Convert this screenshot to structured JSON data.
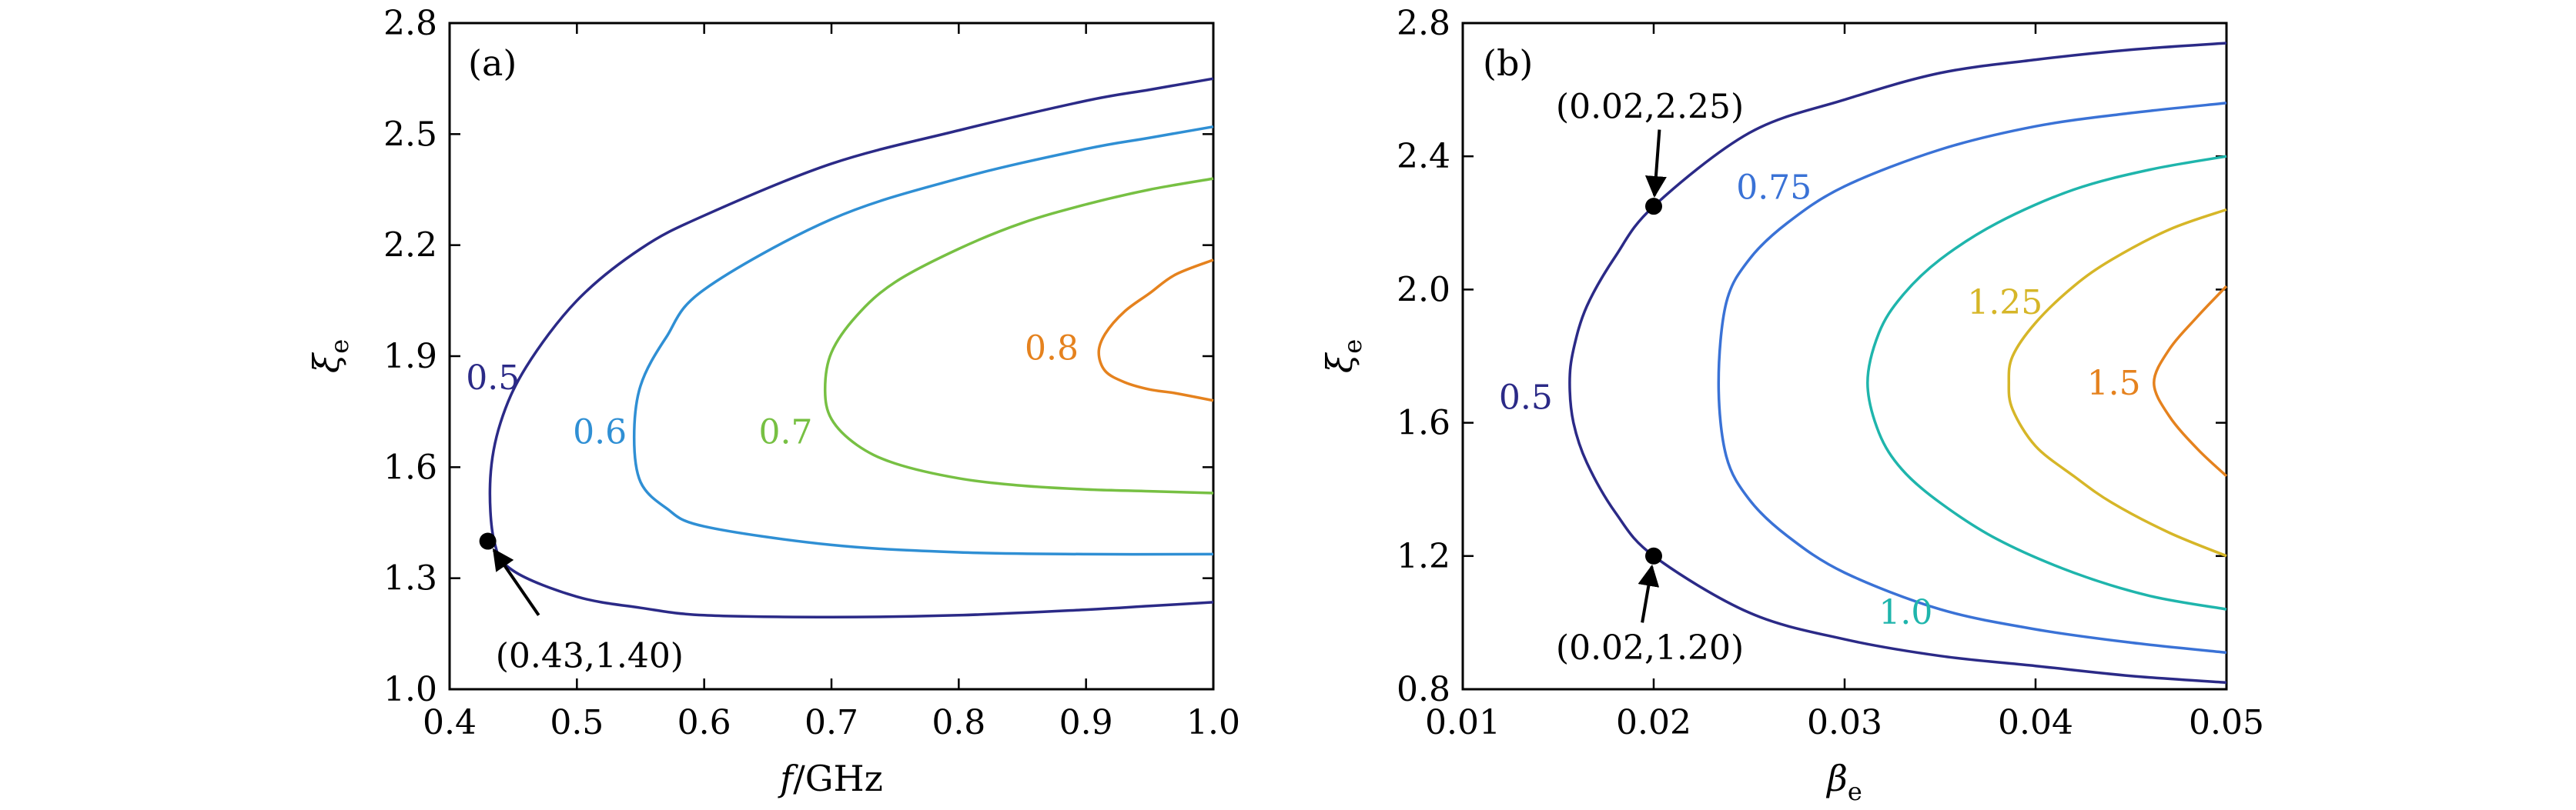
{
  "chart_data": [
    {
      "type": "line",
      "panel_label": "(a)",
      "xlabel_main": "f",
      "xlabel_unit": "/GHz",
      "ylabel_main": "ξ",
      "ylabel_sub": "e",
      "xlim": [
        0.4,
        1.0
      ],
      "ylim": [
        1.0,
        2.8
      ],
      "xticks": [
        "0.4",
        "0.5",
        "0.6",
        "0.7",
        "0.8",
        "0.9",
        "1.0"
      ],
      "yticks": [
        "1.0",
        "1.3",
        "1.6",
        "1.9",
        "2.2",
        "2.5",
        "2.8"
      ],
      "series": [
        {
          "name": "0.5",
          "color": "#2b2a87",
          "x": [
            1.0,
            0.95,
            0.9,
            0.8,
            0.7,
            0.6,
            0.55,
            0.5,
            0.46,
            0.44,
            0.432,
            0.435,
            0.45,
            0.5,
            0.55,
            0.6,
            0.7,
            0.8,
            0.9,
            0.95,
            1.0
          ],
          "y": [
            2.65,
            2.62,
            2.59,
            2.51,
            2.42,
            2.28,
            2.19,
            2.05,
            1.87,
            1.72,
            1.57,
            1.4,
            1.32,
            1.25,
            1.22,
            1.2,
            1.195,
            1.2,
            1.215,
            1.225,
            1.235
          ]
        },
        {
          "name": "0.6",
          "color": "#2f8fd4",
          "x": [
            1.0,
            0.95,
            0.9,
            0.8,
            0.7,
            0.6,
            0.57,
            0.55,
            0.545,
            0.55,
            0.57,
            0.6,
            0.7,
            0.8,
            0.9,
            1.0
          ],
          "y": [
            2.52,
            2.49,
            2.46,
            2.38,
            2.27,
            2.08,
            1.95,
            1.82,
            1.68,
            1.56,
            1.49,
            1.44,
            1.39,
            1.37,
            1.365,
            1.365
          ]
        },
        {
          "name": "0.7",
          "color": "#77c043",
          "x": [
            1.0,
            0.95,
            0.9,
            0.85,
            0.8,
            0.75,
            0.72,
            0.7,
            0.695,
            0.7,
            0.72,
            0.75,
            0.8,
            0.85,
            0.9,
            0.95,
            1.0
          ],
          "y": [
            2.38,
            2.35,
            2.31,
            2.26,
            2.19,
            2.1,
            2.01,
            1.91,
            1.81,
            1.73,
            1.66,
            1.61,
            1.57,
            1.55,
            1.54,
            1.535,
            1.53
          ]
        },
        {
          "name": "0.8",
          "color": "#e5821e",
          "x": [
            1.0,
            0.97,
            0.95,
            0.93,
            0.915,
            0.91,
            0.915,
            0.93,
            0.95,
            0.97,
            1.0
          ],
          "y": [
            2.16,
            2.12,
            2.07,
            2.02,
            1.96,
            1.91,
            1.86,
            1.83,
            1.81,
            1.8,
            1.78
          ]
        }
      ],
      "contour_labels": [
        {
          "text": "0.5",
          "x": 0.434,
          "y": 1.842,
          "color": "#2b2a87"
        },
        {
          "text": "0.6",
          "x": 0.518,
          "y": 1.695,
          "color": "#2f8fd4"
        },
        {
          "text": "0.7",
          "x": 0.664,
          "y": 1.695,
          "color": "#77c043"
        },
        {
          "text": "0.8",
          "x": 0.873,
          "y": 1.922,
          "color": "#e5821e"
        }
      ],
      "point": {
        "x": 0.43,
        "y": 1.4,
        "label": "(0.43,1.40)",
        "label_x": 0.51,
        "label_y": 1.09,
        "arrow_from_x": 0.47,
        "arrow_from_y": 1.2
      }
    },
    {
      "type": "line",
      "panel_label": "(b)",
      "xlabel_main": "β",
      "xlabel_sub": "e",
      "ylabel_main": "ξ",
      "ylabel_sub": "e",
      "xlim": [
        0.01,
        0.05
      ],
      "ylim": [
        0.8,
        2.8
      ],
      "xticks": [
        "0.01",
        "0.02",
        "0.03",
        "0.04",
        "0.05"
      ],
      "yticks": [
        "0.8",
        "1.2",
        "1.6",
        "2.0",
        "2.4",
        "2.8"
      ],
      "series": [
        {
          "name": "0.5",
          "color": "#2b2a87",
          "x": [
            0.05,
            0.045,
            0.04,
            0.035,
            0.03,
            0.025,
            0.02,
            0.018,
            0.0165,
            0.0158,
            0.0156,
            0.0158,
            0.0165,
            0.018,
            0.02,
            0.025,
            0.03,
            0.035,
            0.04,
            0.045,
            0.05
          ],
          "y": [
            2.74,
            2.72,
            2.69,
            2.65,
            2.57,
            2.47,
            2.25,
            2.1,
            1.95,
            1.82,
            1.72,
            1.6,
            1.48,
            1.33,
            1.2,
            1.03,
            0.95,
            0.9,
            0.87,
            0.84,
            0.82
          ]
        },
        {
          "name": "0.75",
          "color": "#3a72d6",
          "x": [
            0.05,
            0.045,
            0.04,
            0.035,
            0.03,
            0.027,
            0.025,
            0.0238,
            0.0234,
            0.0238,
            0.025,
            0.027,
            0.03,
            0.035,
            0.04,
            0.045,
            0.05
          ],
          "y": [
            2.56,
            2.53,
            2.49,
            2.42,
            2.31,
            2.2,
            2.09,
            1.96,
            1.72,
            1.5,
            1.37,
            1.26,
            1.15,
            1.04,
            0.98,
            0.94,
            0.91
          ]
        },
        {
          "name": "1.0",
          "color": "#1fb5ac",
          "x": [
            0.05,
            0.046,
            0.042,
            0.038,
            0.035,
            0.033,
            0.0318,
            0.0312,
            0.0318,
            0.033,
            0.035,
            0.038,
            0.042,
            0.046,
            0.05
          ],
          "y": [
            2.4,
            2.36,
            2.3,
            2.2,
            2.09,
            1.98,
            1.87,
            1.72,
            1.57,
            1.46,
            1.36,
            1.25,
            1.15,
            1.08,
            1.04
          ]
        },
        {
          "name": "1.25",
          "color": "#d6b628",
          "x": [
            0.05,
            0.047,
            0.044,
            0.042,
            0.04,
            0.0388,
            0.0386,
            0.0388,
            0.04,
            0.042,
            0.044,
            0.047,
            0.05
          ],
          "y": [
            2.24,
            2.18,
            2.09,
            2.01,
            1.9,
            1.8,
            1.72,
            1.64,
            1.53,
            1.44,
            1.36,
            1.27,
            1.2
          ]
        },
        {
          "name": "1.5",
          "color": "#e5821e",
          "x": [
            0.05,
            0.0485,
            0.047,
            0.0462,
            0.047,
            0.0485,
            0.05
          ],
          "y": [
            2.01,
            1.92,
            1.82,
            1.72,
            1.62,
            1.52,
            1.44
          ]
        }
      ],
      "contour_labels": [
        {
          "text": "0.5",
          "x": 0.0133,
          "y": 1.676,
          "color": "#2b2a87"
        },
        {
          "text": "0.75",
          "x": 0.0263,
          "y": 2.307,
          "color": "#3a72d6"
        },
        {
          "text": "1.0",
          "x": 0.0332,
          "y": 1.031,
          "color": "#1fb5ac"
        },
        {
          "text": "1.25",
          "x": 0.0384,
          "y": 1.962,
          "color": "#d6b628"
        },
        {
          "text": "1.5",
          "x": 0.0441,
          "y": 1.719,
          "color": "#e5821e"
        }
      ],
      "points": [
        {
          "x": 0.02,
          "y": 2.25,
          "label": "(0.02,2.25)",
          "label_x": 0.0198,
          "label_y": 2.55,
          "arrow_from_x": 0.0203,
          "arrow_from_y": 2.48
        },
        {
          "x": 0.02,
          "y": 1.2,
          "label": "(0.02,1.20)",
          "label_x": 0.0198,
          "label_y": 0.925,
          "arrow_from_x": 0.0194,
          "arrow_from_y": 1.0
        }
      ]
    }
  ]
}
